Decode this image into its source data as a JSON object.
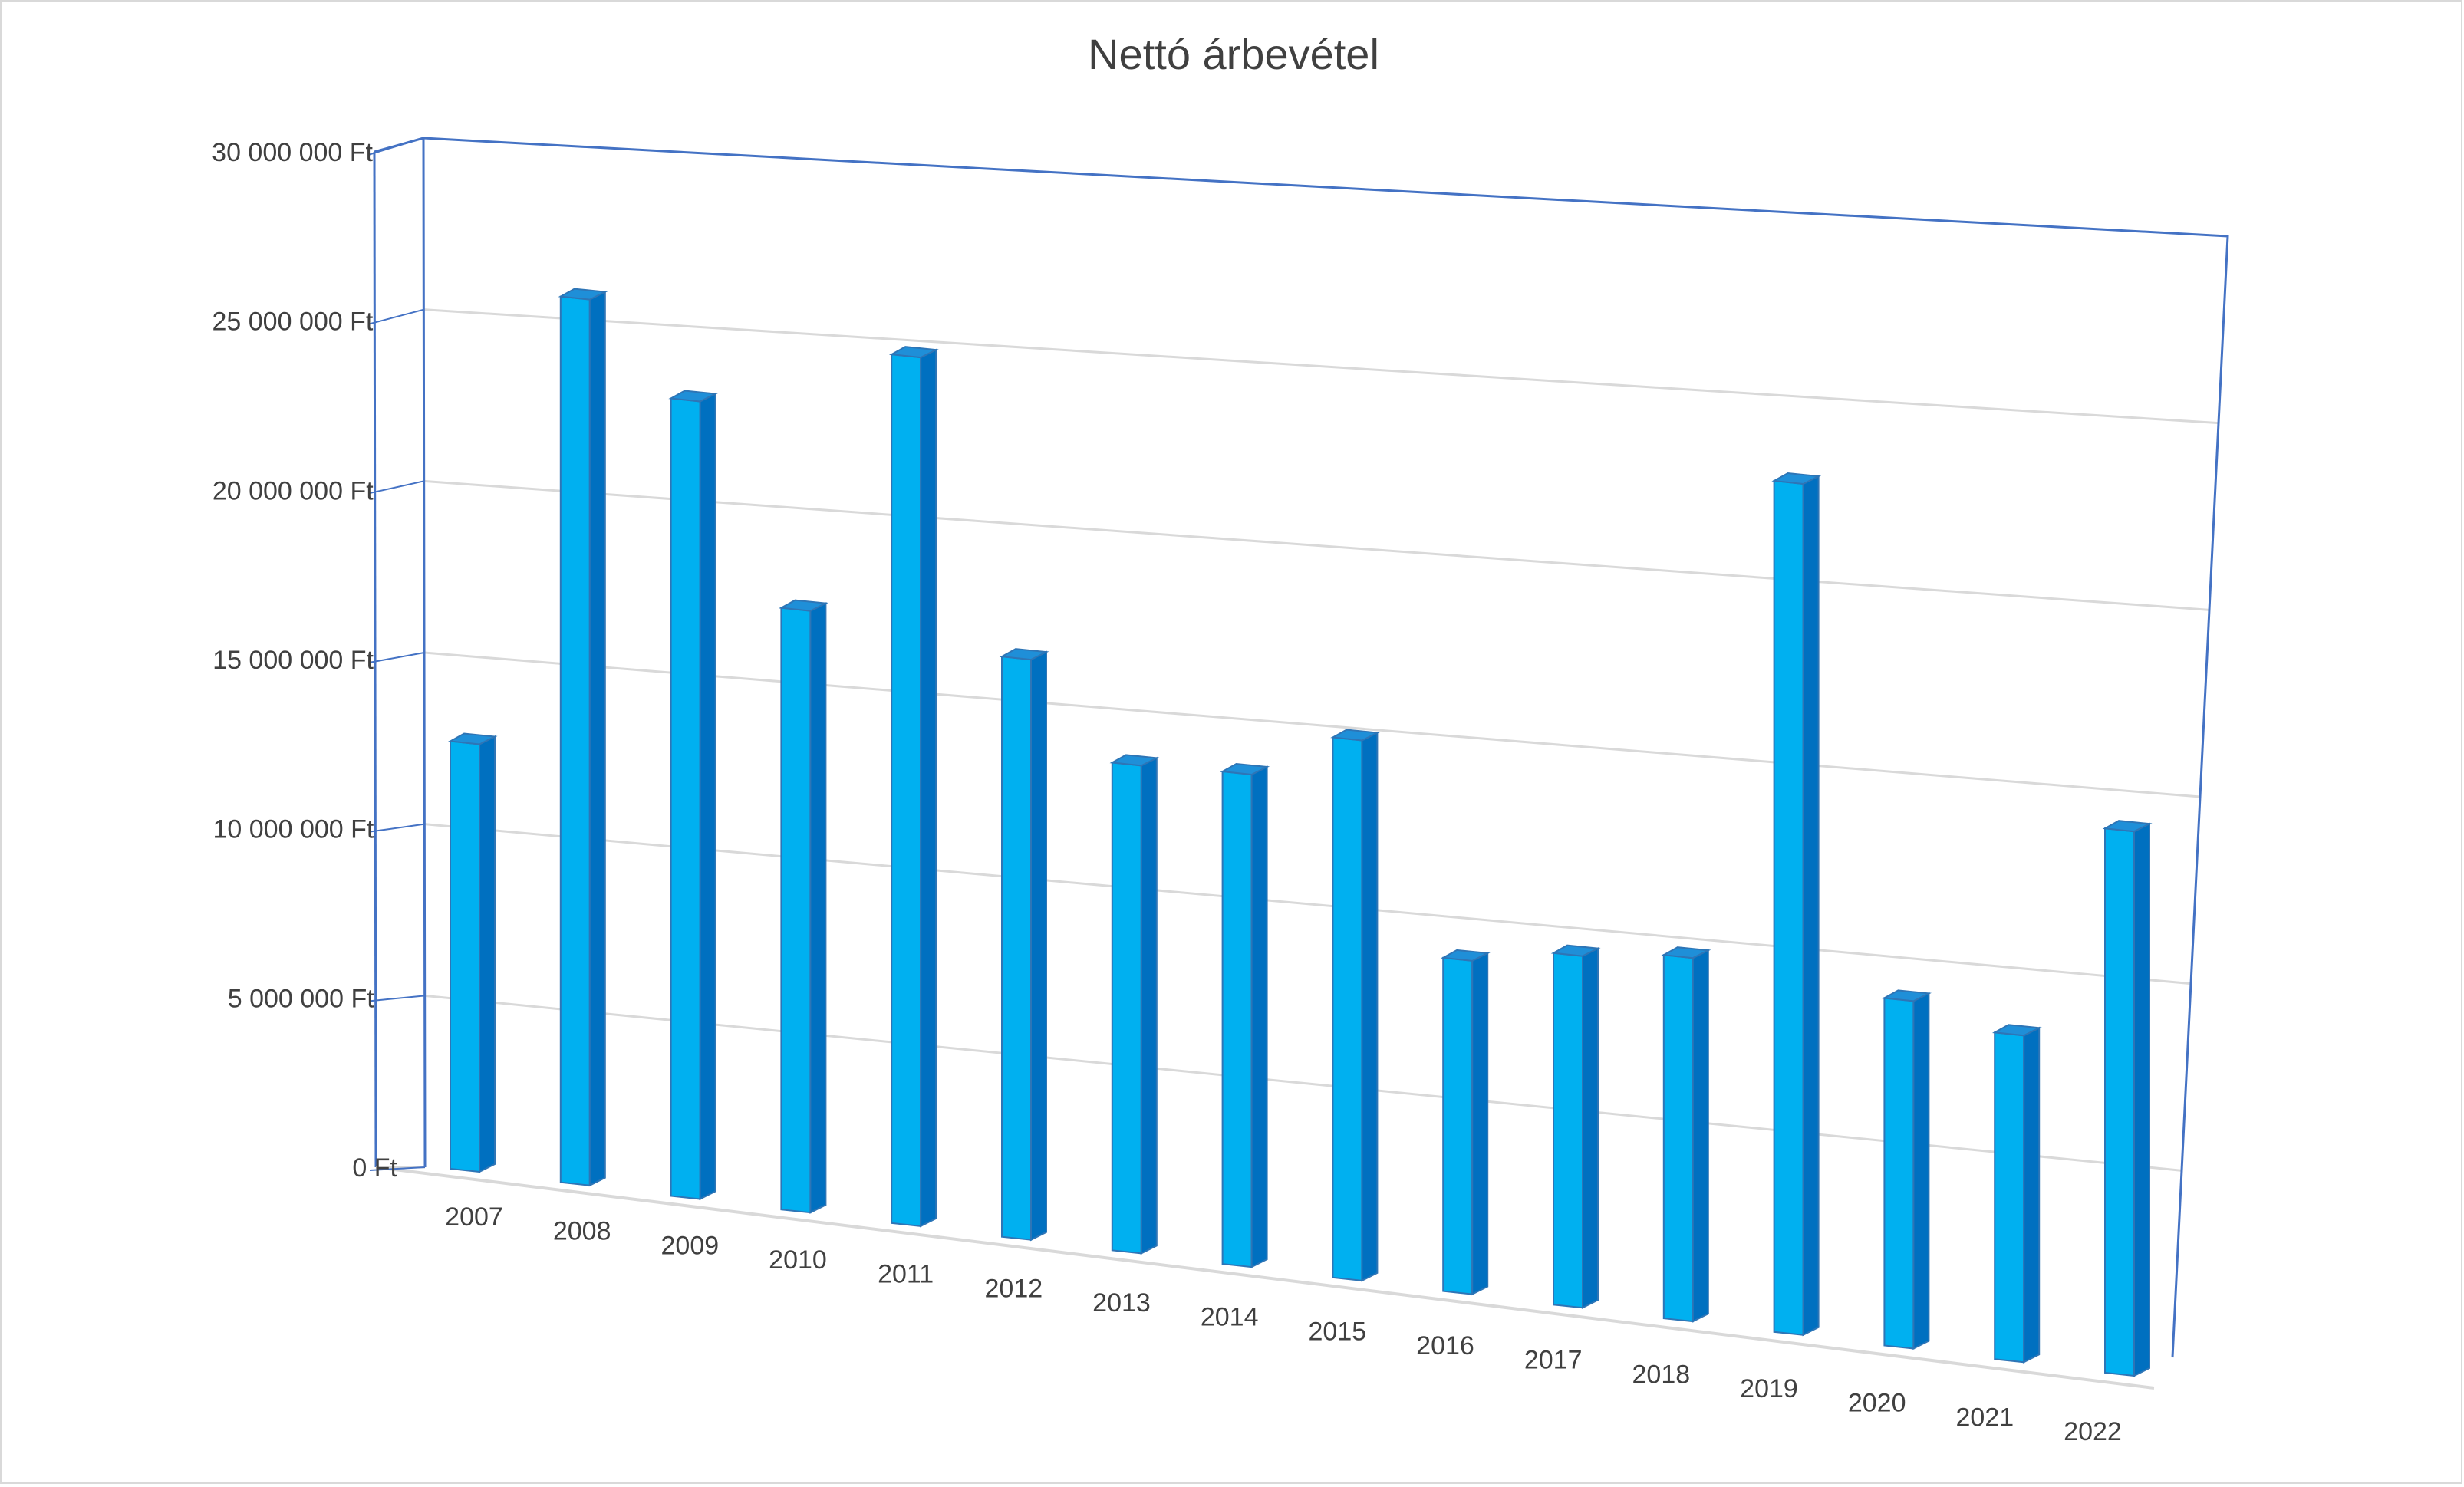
{
  "chart_data": {
    "type": "bar",
    "title": "Nettó árbevétel",
    "xlabel": "",
    "ylabel": "",
    "categories": [
      "2007",
      "2008",
      "2009",
      "2010",
      "2011",
      "2012",
      "2013",
      "2014",
      "2015",
      "2016",
      "2017",
      "2018",
      "2019",
      "2020",
      "2021",
      "2022"
    ],
    "values": [
      12500000,
      26000000,
      23500000,
      17800000,
      25800000,
      17300000,
      14600000,
      14800000,
      16300000,
      10100000,
      10700000,
      11100000,
      26100000,
      10700000,
      10100000,
      16900000
    ],
    "ylim": [
      0,
      30000000
    ],
    "yticks": [
      0,
      5000000,
      10000000,
      15000000,
      20000000,
      25000000,
      30000000
    ],
    "ytick_labels": [
      "0 Ft",
      "5 000 000 Ft",
      "10 000 000 Ft",
      "15 000 000 Ft",
      "20 000 000 Ft",
      "25 000 000 Ft",
      "30 000 000 Ft"
    ],
    "unit": "Ft",
    "grid": true,
    "legend": "none",
    "style": "3d-column",
    "colors": {
      "bar_front": "#00b0f0",
      "bar_side": "#0070c0",
      "bar_top": "#1f8fd8",
      "bar_edge": "#2e75b6",
      "wall_axis": "#4472c4",
      "gridline": "#d9d9d9",
      "text": "#404040"
    }
  }
}
